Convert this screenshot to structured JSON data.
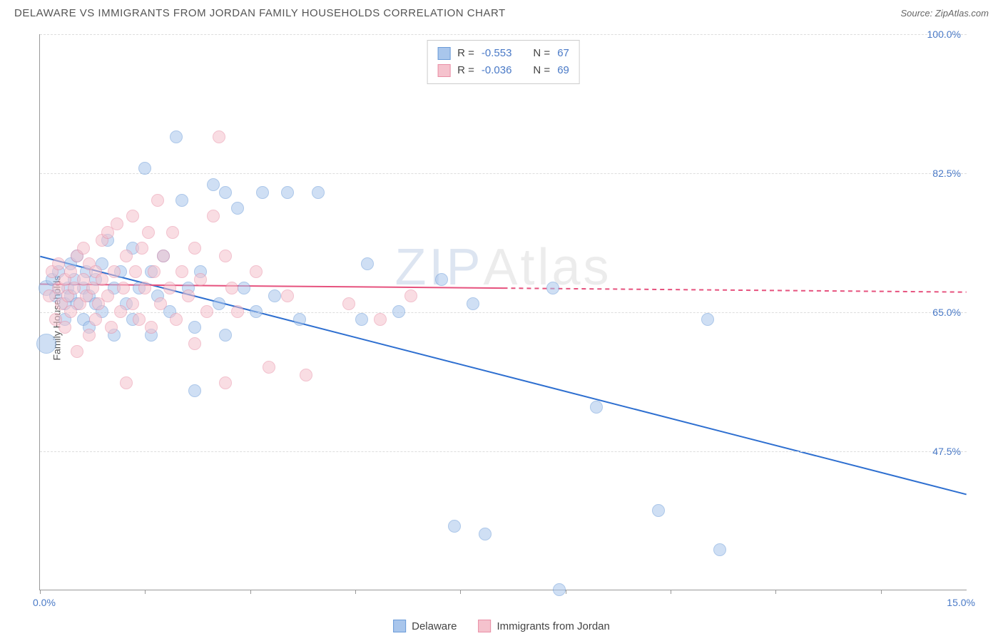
{
  "title": "DELAWARE VS IMMIGRANTS FROM JORDAN FAMILY HOUSEHOLDS CORRELATION CHART",
  "source_prefix": "Source: ",
  "source_name": "ZipAtlas.com",
  "y_axis_label": "Family Households",
  "watermark_z": "ZIP",
  "watermark_rest": "Atlas",
  "chart": {
    "type": "scatter",
    "xlim": [
      0,
      15
    ],
    "ylim": [
      30,
      100
    ],
    "x_tick_positions": [
      0,
      1.7,
      3.4,
      5.1,
      6.8,
      8.5,
      10.2,
      11.9,
      13.6
    ],
    "x_tick_labels": {
      "left": "0.0%",
      "right": "15.0%"
    },
    "y_ticks": [
      47.5,
      65.0,
      82.5,
      100.0
    ],
    "y_tick_labels": [
      "47.5%",
      "65.0%",
      "82.5%",
      "100.0%"
    ],
    "background_color": "#ffffff",
    "grid_color": "#dddddd",
    "axis_color": "#999999",
    "tick_label_color": "#4a7ac7",
    "point_radius": 9,
    "point_opacity": 0.55,
    "series": [
      {
        "name": "Delaware",
        "fill": "#a9c6ec",
        "stroke": "#6a9bd8",
        "R": "-0.553",
        "N": "67",
        "trend": {
          "color": "#2e6fd0",
          "width": 2,
          "x1": 0,
          "y1": 72,
          "x2": 15,
          "y2": 42,
          "x_solid_end": 15
        },
        "points": [
          {
            "x": 0.1,
            "y": 68,
            "r": 11
          },
          {
            "x": 0.1,
            "y": 61,
            "r": 14
          },
          {
            "x": 0.2,
            "y": 69
          },
          {
            "x": 0.25,
            "y": 67
          },
          {
            "x": 0.3,
            "y": 70
          },
          {
            "x": 0.4,
            "y": 66
          },
          {
            "x": 0.4,
            "y": 64
          },
          {
            "x": 0.45,
            "y": 68
          },
          {
            "x": 0.5,
            "y": 71
          },
          {
            "x": 0.5,
            "y": 67
          },
          {
            "x": 0.55,
            "y": 69
          },
          {
            "x": 0.6,
            "y": 66
          },
          {
            "x": 0.6,
            "y": 72
          },
          {
            "x": 0.7,
            "y": 68
          },
          {
            "x": 0.7,
            "y": 64
          },
          {
            "x": 0.75,
            "y": 70
          },
          {
            "x": 0.8,
            "y": 67
          },
          {
            "x": 0.8,
            "y": 63
          },
          {
            "x": 0.9,
            "y": 69
          },
          {
            "x": 0.9,
            "y": 66
          },
          {
            "x": 1.0,
            "y": 71
          },
          {
            "x": 1.0,
            "y": 65
          },
          {
            "x": 1.1,
            "y": 74
          },
          {
            "x": 1.2,
            "y": 68
          },
          {
            "x": 1.2,
            "y": 62
          },
          {
            "x": 1.3,
            "y": 70
          },
          {
            "x": 1.4,
            "y": 66
          },
          {
            "x": 1.5,
            "y": 73
          },
          {
            "x": 1.5,
            "y": 64
          },
          {
            "x": 1.6,
            "y": 68
          },
          {
            "x": 1.7,
            "y": 83
          },
          {
            "x": 1.8,
            "y": 70
          },
          {
            "x": 1.8,
            "y": 62
          },
          {
            "x": 1.9,
            "y": 67
          },
          {
            "x": 2.0,
            "y": 72
          },
          {
            "x": 2.1,
            "y": 65
          },
          {
            "x": 2.2,
            "y": 87
          },
          {
            "x": 2.3,
            "y": 79
          },
          {
            "x": 2.4,
            "y": 68
          },
          {
            "x": 2.5,
            "y": 63
          },
          {
            "x": 2.5,
            "y": 55
          },
          {
            "x": 2.6,
            "y": 70
          },
          {
            "x": 2.8,
            "y": 81
          },
          {
            "x": 2.9,
            "y": 66
          },
          {
            "x": 3.0,
            "y": 80
          },
          {
            "x": 3.0,
            "y": 62
          },
          {
            "x": 3.2,
            "y": 78
          },
          {
            "x": 3.3,
            "y": 68
          },
          {
            "x": 3.5,
            "y": 65
          },
          {
            "x": 3.6,
            "y": 80
          },
          {
            "x": 3.8,
            "y": 67
          },
          {
            "x": 4.0,
            "y": 80
          },
          {
            "x": 4.2,
            "y": 64
          },
          {
            "x": 4.5,
            "y": 80
          },
          {
            "x": 5.2,
            "y": 64
          },
          {
            "x": 5.3,
            "y": 71
          },
          {
            "x": 5.8,
            "y": 65
          },
          {
            "x": 6.5,
            "y": 69
          },
          {
            "x": 6.7,
            "y": 38
          },
          {
            "x": 7.0,
            "y": 66
          },
          {
            "x": 7.2,
            "y": 37
          },
          {
            "x": 8.3,
            "y": 68
          },
          {
            "x": 8.4,
            "y": 30
          },
          {
            "x": 9.0,
            "y": 53
          },
          {
            "x": 10.0,
            "y": 40
          },
          {
            "x": 10.8,
            "y": 64
          },
          {
            "x": 11.0,
            "y": 35
          }
        ]
      },
      {
        "name": "Immigrants from Jordan",
        "fill": "#f5c2cd",
        "stroke": "#e98fa6",
        "R": "-0.036",
        "N": "69",
        "trend": {
          "color": "#e6527e",
          "width": 2,
          "x1": 0,
          "y1": 68.5,
          "x2": 15,
          "y2": 67.5,
          "x_solid_end": 7.5
        },
        "points": [
          {
            "x": 0.15,
            "y": 67
          },
          {
            "x": 0.2,
            "y": 70
          },
          {
            "x": 0.25,
            "y": 64
          },
          {
            "x": 0.3,
            "y": 68
          },
          {
            "x": 0.3,
            "y": 71
          },
          {
            "x": 0.35,
            "y": 66
          },
          {
            "x": 0.4,
            "y": 69
          },
          {
            "x": 0.4,
            "y": 63
          },
          {
            "x": 0.45,
            "y": 67
          },
          {
            "x": 0.5,
            "y": 70
          },
          {
            "x": 0.5,
            "y": 65
          },
          {
            "x": 0.55,
            "y": 68
          },
          {
            "x": 0.6,
            "y": 72
          },
          {
            "x": 0.6,
            "y": 60
          },
          {
            "x": 0.65,
            "y": 66
          },
          {
            "x": 0.7,
            "y": 69
          },
          {
            "x": 0.7,
            "y": 73
          },
          {
            "x": 0.75,
            "y": 67
          },
          {
            "x": 0.8,
            "y": 71
          },
          {
            "x": 0.8,
            "y": 62
          },
          {
            "x": 0.85,
            "y": 68
          },
          {
            "x": 0.9,
            "y": 64
          },
          {
            "x": 0.9,
            "y": 70
          },
          {
            "x": 0.95,
            "y": 66
          },
          {
            "x": 1.0,
            "y": 69
          },
          {
            "x": 1.0,
            "y": 74
          },
          {
            "x": 1.1,
            "y": 67
          },
          {
            "x": 1.1,
            "y": 75
          },
          {
            "x": 1.15,
            "y": 63
          },
          {
            "x": 1.2,
            "y": 70
          },
          {
            "x": 1.25,
            "y": 76
          },
          {
            "x": 1.3,
            "y": 65
          },
          {
            "x": 1.35,
            "y": 68
          },
          {
            "x": 1.4,
            "y": 72
          },
          {
            "x": 1.4,
            "y": 56
          },
          {
            "x": 1.5,
            "y": 77
          },
          {
            "x": 1.5,
            "y": 66
          },
          {
            "x": 1.55,
            "y": 70
          },
          {
            "x": 1.6,
            "y": 64
          },
          {
            "x": 1.65,
            "y": 73
          },
          {
            "x": 1.7,
            "y": 68
          },
          {
            "x": 1.75,
            "y": 75
          },
          {
            "x": 1.8,
            "y": 63
          },
          {
            "x": 1.85,
            "y": 70
          },
          {
            "x": 1.9,
            "y": 79
          },
          {
            "x": 1.95,
            "y": 66
          },
          {
            "x": 2.0,
            "y": 72
          },
          {
            "x": 2.1,
            "y": 68
          },
          {
            "x": 2.15,
            "y": 75
          },
          {
            "x": 2.2,
            "y": 64
          },
          {
            "x": 2.3,
            "y": 70
          },
          {
            "x": 2.4,
            "y": 67
          },
          {
            "x": 2.5,
            "y": 73
          },
          {
            "x": 2.5,
            "y": 61
          },
          {
            "x": 2.6,
            "y": 69
          },
          {
            "x": 2.7,
            "y": 65
          },
          {
            "x": 2.8,
            "y": 77
          },
          {
            "x": 2.9,
            "y": 87
          },
          {
            "x": 3.0,
            "y": 72
          },
          {
            "x": 3.0,
            "y": 56
          },
          {
            "x": 3.1,
            "y": 68
          },
          {
            "x": 3.2,
            "y": 65
          },
          {
            "x": 3.5,
            "y": 70
          },
          {
            "x": 3.7,
            "y": 58
          },
          {
            "x": 4.0,
            "y": 67
          },
          {
            "x": 4.3,
            "y": 57
          },
          {
            "x": 5.0,
            "y": 66
          },
          {
            "x": 5.5,
            "y": 64
          },
          {
            "x": 6.0,
            "y": 67
          }
        ]
      }
    ]
  },
  "correlation_box": {
    "r_label_prefix": "R = ",
    "n_label_prefix": "N = "
  },
  "bottom_legend": {
    "items": [
      "Delaware",
      "Immigrants from Jordan"
    ]
  }
}
